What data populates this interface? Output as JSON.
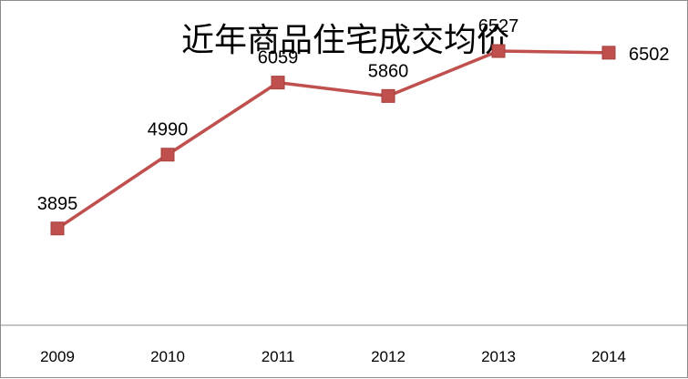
{
  "chart_data": {
    "type": "line",
    "title": "近年商品住宅成交均价",
    "categories": [
      "2009",
      "2010",
      "2011",
      "2012",
      "2013",
      "2014"
    ],
    "values": [
      3895,
      4990,
      6059,
      5860,
      6527,
      6502
    ],
    "data_labels": [
      "3895",
      "4990",
      "6059",
      "5860",
      "6527",
      "6502"
    ],
    "xlabel": "",
    "ylabel": "",
    "ylim": [
      2000,
      7000
    ],
    "grid": false,
    "legend": "none",
    "series_color": "#c0504d",
    "marker": "square"
  }
}
